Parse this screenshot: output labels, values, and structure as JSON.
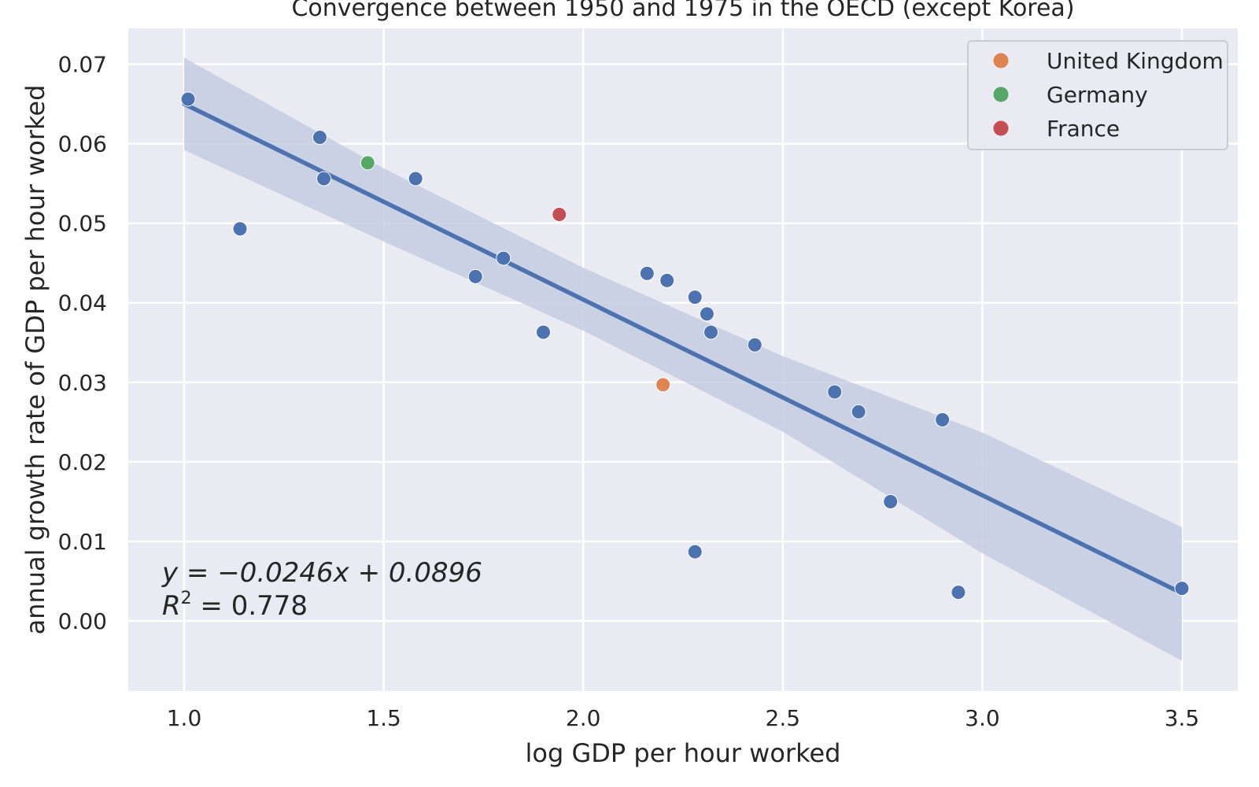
{
  "chart_data": {
    "type": "scatter",
    "title": "Convergence between 1950 and 1975 in the OECD (except Korea)",
    "xlabel": "log GDP per hour worked",
    "ylabel": "annual growth rate of GDP per hour worked",
    "xlim": [
      0.86,
      3.64
    ],
    "ylim": [
      -0.0088,
      0.0745
    ],
    "xticks": [
      1.0,
      1.5,
      2.0,
      2.5,
      3.0,
      3.5
    ],
    "xtick_labels": [
      "1.0",
      "1.5",
      "2.0",
      "2.5",
      "3.0",
      "3.5"
    ],
    "yticks": [
      0.0,
      0.01,
      0.02,
      0.03,
      0.04,
      0.05,
      0.06,
      0.07
    ],
    "ytick_labels": [
      "0.00",
      "0.01",
      "0.02",
      "0.03",
      "0.04",
      "0.05",
      "0.06",
      "0.07"
    ],
    "grid": true,
    "legend_position": "top-right",
    "colors": {
      "background": "#eaeaf2",
      "grid": "#ffffff",
      "default_points": "#4c72b0",
      "regression_line": "#4c72b0",
      "confidence_band": "#c4cce2"
    },
    "series": [
      {
        "points": [
          [
            1.01,
            0.0656
          ],
          [
            1.14,
            0.0493
          ],
          [
            1.34,
            0.0608
          ],
          [
            1.35,
            0.0556
          ],
          [
            1.58,
            0.0556
          ],
          [
            1.73,
            0.0433
          ],
          [
            1.8,
            0.0456
          ],
          [
            1.9,
            0.0363
          ],
          [
            2.16,
            0.0437
          ],
          [
            2.21,
            0.0428
          ],
          [
            2.28,
            0.0407
          ],
          [
            2.31,
            0.0386
          ],
          [
            2.32,
            0.0363
          ],
          [
            2.43,
            0.0347
          ],
          [
            2.63,
            0.0288
          ],
          [
            2.69,
            0.0263
          ],
          [
            2.9,
            0.0253
          ],
          [
            2.77,
            0.015
          ],
          [
            2.28,
            0.0087
          ],
          [
            2.94,
            0.0036
          ],
          [
            3.5,
            0.0041
          ]
        ]
      },
      {
        "name": "United Kingdom",
        "color": "#dd8452",
        "points": [
          [
            2.2,
            0.0297
          ]
        ]
      },
      {
        "name": "Germany",
        "color": "#55a868",
        "points": [
          [
            1.46,
            0.0576
          ]
        ]
      },
      {
        "name": "France",
        "color": "#c44e52",
        "points": [
          [
            1.94,
            0.0511
          ]
        ]
      }
    ],
    "regression": {
      "slope": -0.0246,
      "intercept": 0.0896,
      "x_range": [
        1.0,
        3.5
      ],
      "band_lower": [
        [
          1.0,
          0.0592
        ],
        [
          1.5,
          0.0477
        ],
        [
          2.0,
          0.0365
        ],
        [
          2.5,
          0.0238
        ],
        [
          3.0,
          0.0085
        ],
        [
          3.5,
          -0.005
        ]
      ],
      "band_upper": [
        [
          1.0,
          0.0708
        ],
        [
          1.5,
          0.0569
        ],
        [
          2.0,
          0.0444
        ],
        [
          2.5,
          0.0333
        ],
        [
          3.0,
          0.0237
        ],
        [
          3.5,
          0.0118
        ]
      ]
    },
    "annotation": {
      "equation": "y = −0.0246x + 0.0896",
      "r_squared_prefix": "R",
      "r_squared_exp": "2",
      "r_squared_value": " = 0.778"
    }
  }
}
